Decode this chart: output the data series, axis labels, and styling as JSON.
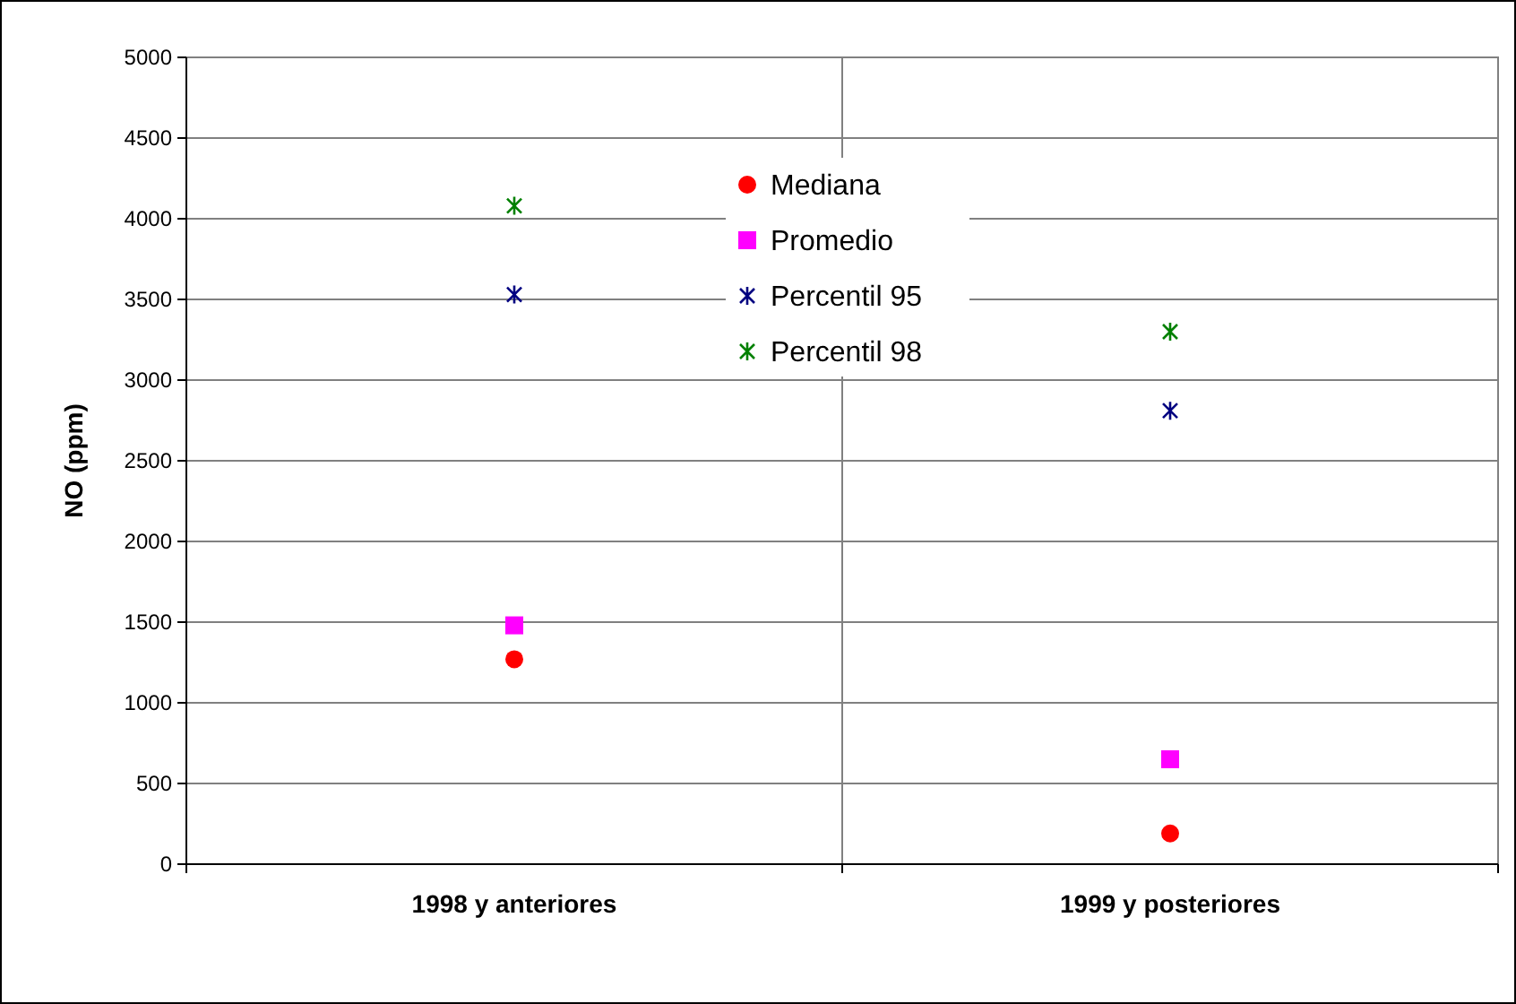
{
  "chart_data": {
    "type": "scatter",
    "ylabel": "NO (ppm)",
    "categories": [
      "1998 y anteriores",
      "1999 y posteriores"
    ],
    "series": [
      {
        "name": "Mediana",
        "color": "#ff0000",
        "marker": "circle",
        "values": [
          1270,
          190
        ]
      },
      {
        "name": "Promedio",
        "color": "#ff00ff",
        "marker": "square",
        "values": [
          1480,
          650
        ]
      },
      {
        "name": "Percentil 95",
        "color": "#000080",
        "marker": "cross",
        "values": [
          3530,
          2810
        ]
      },
      {
        "name": "Percentil 98",
        "color": "#008000",
        "marker": "cross",
        "values": [
          4080,
          3300
        ]
      }
    ],
    "ylim": [
      0,
      5000
    ],
    "yticks": [
      0,
      500,
      1000,
      1500,
      2000,
      2500,
      3000,
      3500,
      4000,
      4500,
      5000
    ],
    "grid": true,
    "legend": "top"
  }
}
